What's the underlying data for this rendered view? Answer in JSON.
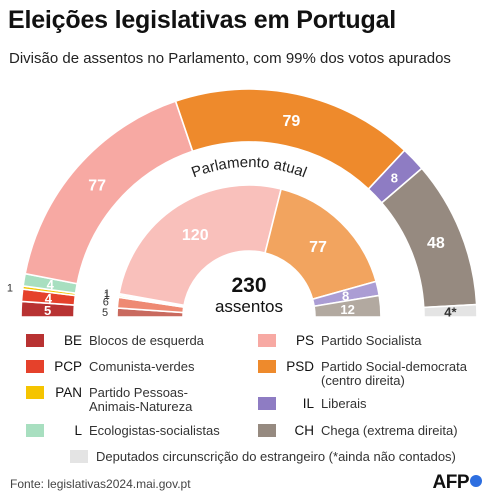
{
  "title": "Eleições legislativas em Portugal",
  "subtitle_bold": "Divisão de assentos no Parlamento,",
  "subtitle_rest": " com 99% dos votos apurados",
  "source": "Fonte: legislativas2024.mai.gov.pt",
  "logo": "AFP",
  "chart_data": [
    {
      "type": "pie",
      "title": "",
      "series": [
        {
          "party": "BE",
          "values": 5,
          "label": "5",
          "color": "#b83232"
        },
        {
          "party": "PCP",
          "values": 4,
          "label": "4",
          "color": "#e5412b"
        },
        {
          "party": "PAN",
          "values": 1,
          "label": "1",
          "color": "#f5c400"
        },
        {
          "party": "L",
          "values": 4,
          "label": "4",
          "color": "#a8dfc0"
        },
        {
          "party": "PS",
          "values": 77,
          "label": "77",
          "color": "#f7a9a3"
        },
        {
          "party": "PSD",
          "values": 79,
          "label": "79",
          "color": "#ee8a2c"
        },
        {
          "party": "IL",
          "values": 8,
          "label": "8",
          "color": "#8e7cc3"
        },
        {
          "party": "CH",
          "values": 48,
          "label": "48",
          "color": "#968a80"
        },
        {
          "party": "Estrangeiro",
          "values": 4,
          "label": "4*",
          "color": "#e4e4e4"
        }
      ]
    },
    {
      "type": "pie",
      "title": "Parlamento atual",
      "total": "230",
      "total_label": "assentos",
      "series": [
        {
          "party": "BE",
          "values": 5,
          "label": "5",
          "color": "#c96a5f"
        },
        {
          "party": "PCP",
          "values": 6,
          "label": "6",
          "color": "#ee8a73"
        },
        {
          "party": "PAN",
          "values": 1,
          "label": "1",
          "color": "#f7dd75"
        },
        {
          "party": "L",
          "values": 1,
          "label": "1",
          "color": "#cbead8"
        },
        {
          "party": "PS",
          "values": 120,
          "label": "120",
          "color": "#f9c0bb"
        },
        {
          "party": "PSD",
          "values": 77,
          "label": "77",
          "color": "#f2a45f"
        },
        {
          "party": "IL",
          "values": 8,
          "label": "8",
          "color": "#ab9dd4"
        },
        {
          "party": "CH",
          "values": 12,
          "label": "12",
          "color": "#b2a9a0"
        }
      ]
    }
  ],
  "legend": [
    {
      "code": "BE",
      "name": "Blocos de esquerda",
      "color": "#b83232"
    },
    {
      "code": "PCP",
      "name": "Comunista-verdes",
      "color": "#e5412b"
    },
    {
      "code": "PAN",
      "name": "Partido Pessoas-\nAnimais-Natureza",
      "color": "#f5c400"
    },
    {
      "code": "L",
      "name": "Ecologistas-socialistas",
      "color": "#a8dfc0"
    },
    {
      "code": "PS",
      "name": "Partido Socialista",
      "color": "#f7a9a3"
    },
    {
      "code": "PSD",
      "name": "Partido Social-democrata\n(centro direita)",
      "color": "#ee8a2c"
    },
    {
      "code": "IL",
      "name": "Liberais",
      "color": "#8e7cc3"
    },
    {
      "code": "CH",
      "name": "Chega (extrema direita)",
      "color": "#968a80"
    },
    {
      "code": "",
      "name": "Deputados circunscrição do estrangeiro (*ainda não contados)",
      "color": "#e4e4e4"
    }
  ]
}
